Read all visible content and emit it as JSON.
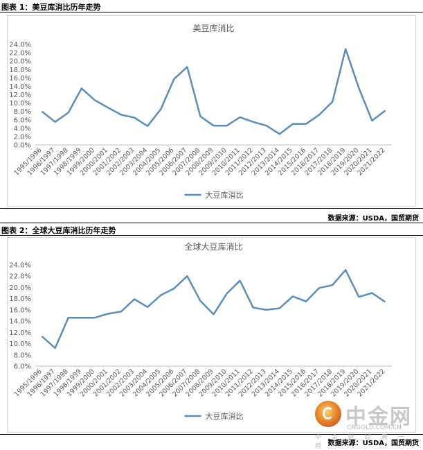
{
  "figures": [
    {
      "header": "图表 1：美豆库消比历年走势",
      "source": "数据来源：USDA，国贸期货"
    },
    {
      "header": "图表 2：全球大豆库消比历年走势",
      "source": "数据来源：USDA，国贸期货"
    }
  ],
  "watermark": {
    "name": "中金网",
    "domain": "CNGOLD.COM.CN",
    "tagline": "中 金 财 经 第 一 网"
  },
  "colors": {
    "line": "#5b8db8",
    "grid": "#d9d9d9",
    "text": "#595959"
  },
  "chart_data": [
    {
      "type": "line",
      "title": "美豆库消比",
      "categories": [
        "1995/1996",
        "1996/1997",
        "1997/1998",
        "1998/1999",
        "1999/2000",
        "2000/2001",
        "2001/2002",
        "2002/2003",
        "2003/2004",
        "2004/2005",
        "2005/2006",
        "2006/2007",
        "2007/2008",
        "2008/2009",
        "2009/2010",
        "2010/2011",
        "2011/2012",
        "2012/2013",
        "2013/2014",
        "2014/2015",
        "2015/2016",
        "2016/2017",
        "2017/2018",
        "2018/2019",
        "2019/2020",
        "2020/2021",
        "2021/2022"
      ],
      "series": [
        {
          "name": "大豆库消比",
          "values": [
            8.0,
            5.5,
            7.7,
            13.5,
            10.7,
            8.9,
            7.2,
            6.5,
            4.5,
            8.5,
            15.7,
            18.6,
            6.8,
            4.6,
            4.6,
            6.6,
            5.5,
            4.6,
            2.6,
            5.0,
            5.0,
            7.2,
            10.3,
            22.9,
            13.6,
            5.8,
            8.2
          ]
        }
      ],
      "ylim": [
        0,
        24
      ],
      "yticks": [
        "0.0%",
        "2.0%",
        "4.0%",
        "6.0%",
        "8.0%",
        "10.0%",
        "12.0%",
        "14.0%",
        "16.0%",
        "18.0%",
        "20.0%",
        "22.0%",
        "24.0%"
      ],
      "ytick_values": [
        0,
        2,
        4,
        6,
        8,
        10,
        12,
        14,
        16,
        18,
        20,
        22,
        24
      ],
      "legend": "bottom",
      "grid": false
    },
    {
      "type": "line",
      "title": "全球大豆库消比",
      "categories": [
        "1995/1996",
        "1996/1997",
        "1997/1998",
        "1998/1999",
        "1999/2000",
        "2000/2001",
        "2001/2002",
        "2002/2003",
        "2003/2004",
        "2004/2005",
        "2005/2006",
        "2006/2007",
        "2007/2008",
        "2008/2009",
        "2009/2010",
        "2010/2011",
        "2011/2012",
        "2012/2013",
        "2013/2014",
        "2014/2015",
        "2015/2016",
        "2016/2017",
        "2017/2018",
        "2018/2019",
        "2019/2020",
        "2020/2021",
        "2021/2022"
      ],
      "series": [
        {
          "name": "大豆库消比",
          "values": [
            11.3,
            9.2,
            14.6,
            14.6,
            14.6,
            15.3,
            15.7,
            17.9,
            16.5,
            18.6,
            19.8,
            22.0,
            17.6,
            15.2,
            18.9,
            21.2,
            16.4,
            16.0,
            16.3,
            18.4,
            17.5,
            19.9,
            20.4,
            23.1,
            18.3,
            19.0,
            17.4
          ]
        }
      ],
      "ylim": [
        6,
        24
      ],
      "yticks": [
        "6.0%",
        "8.0%",
        "10.0%",
        "12.0%",
        "14.0%",
        "16.0%",
        "18.0%",
        "20.0%",
        "22.0%",
        "24.0%"
      ],
      "ytick_values": [
        6,
        8,
        10,
        12,
        14,
        16,
        18,
        20,
        22,
        24
      ],
      "legend": "bottom",
      "grid": false
    }
  ]
}
